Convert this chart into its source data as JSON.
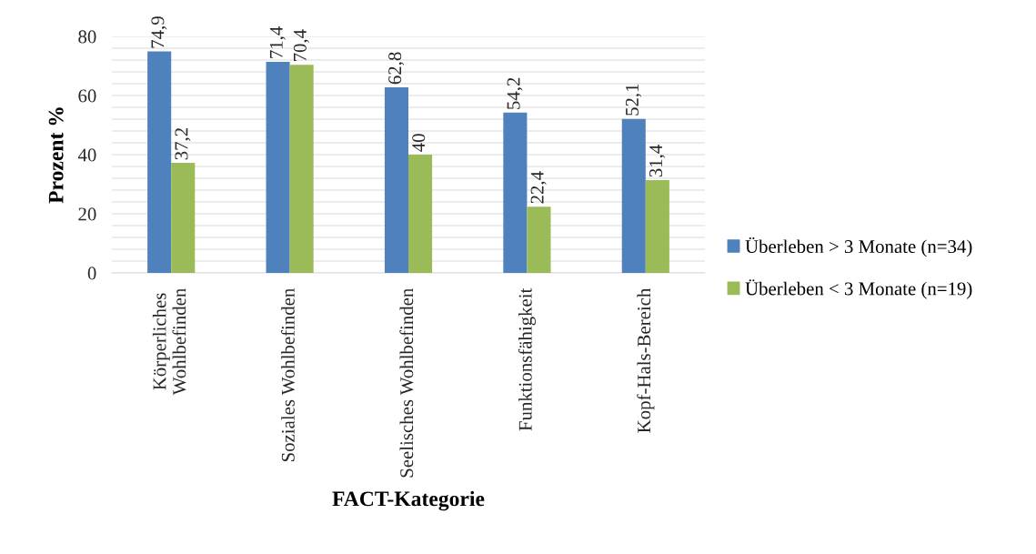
{
  "chart_data": {
    "type": "bar",
    "xlabel": "FACT-Kategorie",
    "ylabel": "Prozent %",
    "categories": [
      "Körperliches\nWohlbefinden",
      "Soziales Wohlbefinden",
      "Seelisches Wohlbefinden",
      "Funktionsfähigkeit",
      "Kopf-Hals-Bereich"
    ],
    "series": [
      {
        "name": "Überleben > 3 Monate (n=34)",
        "color": "#4f81bd",
        "values": [
          74.9,
          71.4,
          62.8,
          54.2,
          52.1
        ],
        "value_labels": [
          "74,9",
          "71,4",
          "62,8",
          "54,2",
          "52,1"
        ]
      },
      {
        "name": "Überleben < 3 Monate (n=19)",
        "color": "#9bbb59",
        "values": [
          37.2,
          70.4,
          40,
          22.4,
          31.4
        ],
        "value_labels": [
          "37,2",
          "70,4",
          "40",
          "22,4",
          "31,4"
        ]
      }
    ],
    "ylim": [
      0,
      80
    ],
    "yticks": [
      0,
      {
        "value": 4,
        "label": null
      },
      {
        "value": 8,
        "label": null
      },
      {
        "value": 12,
        "label": null
      },
      {
        "value": 16,
        "label": null
      },
      20,
      {
        "value": 24,
        "label": null
      },
      {
        "value": 28,
        "label": null
      },
      {
        "value": 32,
        "label": null
      },
      {
        "value": 36,
        "label": null
      },
      40,
      {
        "value": 44,
        "label": null
      },
      {
        "value": 48,
        "label": null
      },
      {
        "value": 52,
        "label": null
      },
      {
        "value": 56,
        "label": null
      },
      60,
      {
        "value": 64,
        "label": null
      },
      {
        "value": 68,
        "label": null
      },
      {
        "value": 72,
        "label": null
      },
      {
        "value": 76,
        "label": null
      },
      80
    ],
    "grid": "y",
    "legend": "right"
  }
}
